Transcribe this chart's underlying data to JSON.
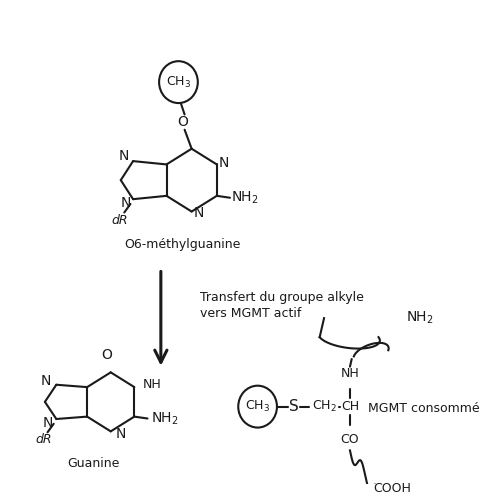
{
  "bg_color": "#ffffff",
  "line_color": "#1a1a1a",
  "text_color": "#1a1a1a",
  "figsize": [
    4.95,
    5.01
  ],
  "dpi": 100,
  "top_mol_label": "O6-méthylguanine",
  "bottom_left_label": "Guanine",
  "arrow_label_line1": "Transfert du groupe alkyle",
  "arrow_label_line2": "vers MGMT actif",
  "mgmt_label": "MGMT consommé"
}
